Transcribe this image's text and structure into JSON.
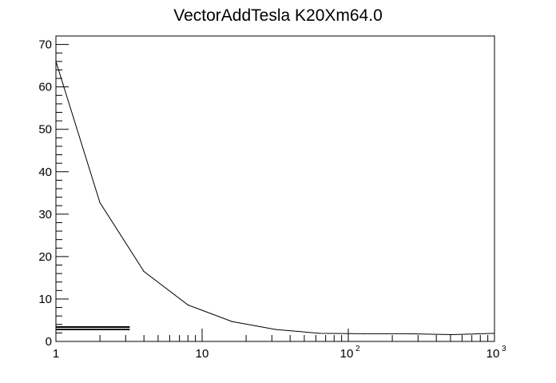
{
  "chart_data": {
    "type": "line",
    "title": "VectorAddTesla K20Xm64.0",
    "xlabel": "",
    "ylabel": "",
    "x_scale": "log",
    "xlim": [
      1,
      1000
    ],
    "ylim": [
      0,
      72
    ],
    "grid": false,
    "y_ticks": [
      0,
      10,
      20,
      30,
      40,
      50,
      60,
      70
    ],
    "x_tick_labels": [
      {
        "value": 1,
        "base": "1",
        "sup": ""
      },
      {
        "value": 10,
        "base": "10",
        "sup": ""
      },
      {
        "value": 100,
        "base": "10",
        "sup": "2"
      },
      {
        "value": 1000,
        "base": "10",
        "sup": "3"
      }
    ],
    "series": [
      {
        "x": [
          1,
          2,
          4,
          8,
          16,
          32,
          64,
          128,
          256,
          512,
          1000
        ],
        "values": [
          66,
          32.7,
          16.5,
          8.6,
          4.7,
          2.8,
          1.9,
          1.8,
          1.8,
          1.6,
          1.9
        ]
      }
    ],
    "legend": {
      "position": "bottom-left",
      "entries": [
        "",
        ""
      ]
    }
  }
}
